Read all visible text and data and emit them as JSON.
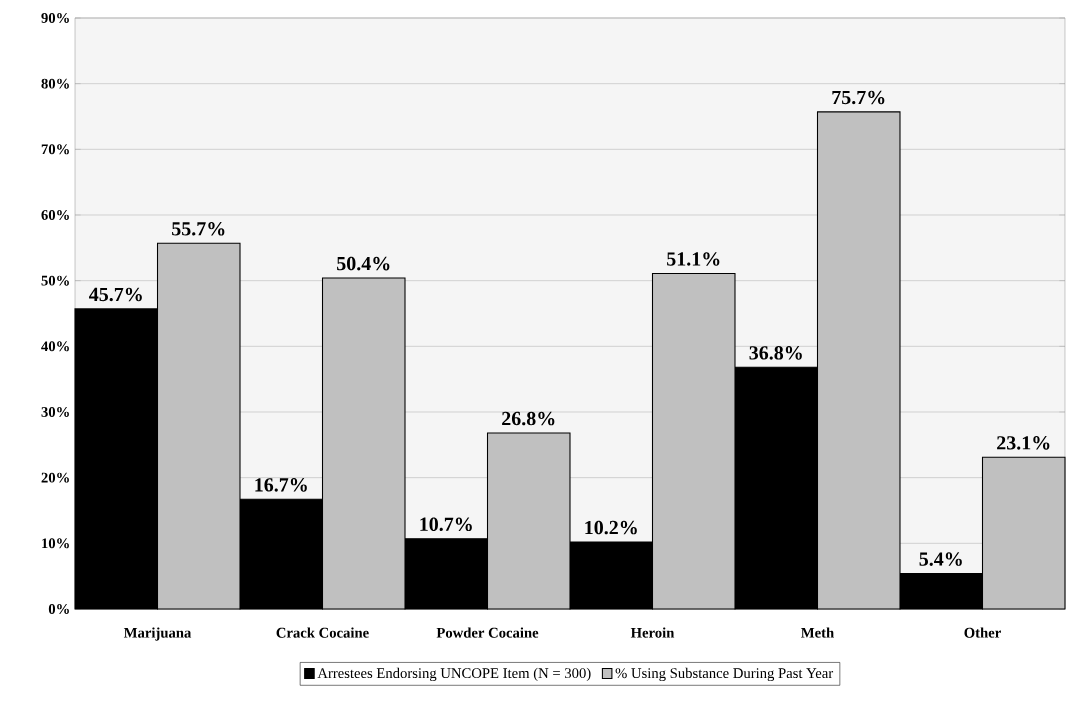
{
  "chart_data": {
    "type": "bar",
    "categories": [
      "Marijuana",
      "Crack Cocaine",
      "Powder Cocaine",
      "Heroin",
      "Meth",
      "Other"
    ],
    "series": [
      {
        "name": "Arrestees Endorsing UNCOPE Item (N = 300)",
        "color": "#000000",
        "values": [
          45.7,
          16.7,
          10.7,
          10.2,
          36.8,
          5.4
        ],
        "value_labels": [
          "45.7%",
          "16.7%",
          "10.7%",
          "10.2%",
          "36.8%",
          "5.4%"
        ]
      },
      {
        "name": "% Using Substance During Past Year",
        "color": "#c0c0c0",
        "values": [
          55.7,
          50.4,
          26.8,
          51.1,
          75.7,
          23.1
        ],
        "value_labels": [
          "55.7%",
          "50.4%",
          "26.8%",
          "51.1%",
          "75.7%",
          "23.1%"
        ]
      }
    ],
    "ylim": [
      0,
      90
    ],
    "yticks": [
      {
        "value": 0,
        "label": "0%"
      },
      {
        "value": 10,
        "label": "10%"
      },
      {
        "value": 20,
        "label": "20%"
      },
      {
        "value": 30,
        "label": "30%"
      },
      {
        "value": 40,
        "label": "40%"
      },
      {
        "value": 50,
        "label": "50%"
      },
      {
        "value": 60,
        "label": "60%"
      },
      {
        "value": 70,
        "label": "70%"
      },
      {
        "value": 80,
        "label": "80%"
      },
      {
        "value": 90,
        "label": "90%"
      }
    ],
    "grid": "y",
    "legend": "bottom"
  }
}
